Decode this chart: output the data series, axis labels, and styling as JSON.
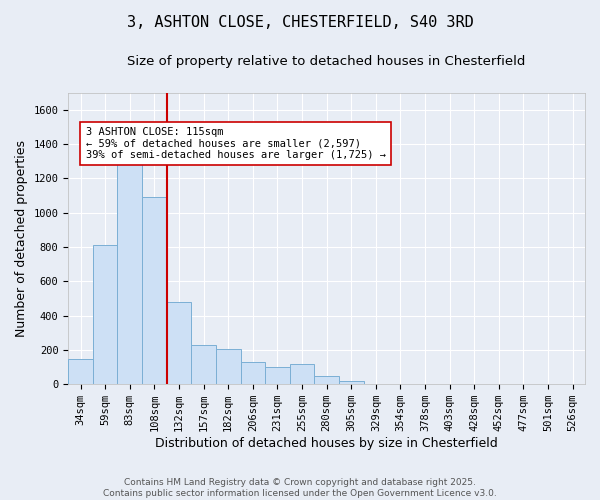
{
  "title1": "3, ASHTON CLOSE, CHESTERFIELD, S40 3RD",
  "title2": "Size of property relative to detached houses in Chesterfield",
  "xlabel": "Distribution of detached houses by size in Chesterfield",
  "ylabel": "Number of detached properties",
  "categories": [
    "34sqm",
    "59sqm",
    "83sqm",
    "108sqm",
    "132sqm",
    "157sqm",
    "182sqm",
    "206sqm",
    "231sqm",
    "255sqm",
    "280sqm",
    "305sqm",
    "329sqm",
    "354sqm",
    "378sqm",
    "403sqm",
    "428sqm",
    "452sqm",
    "477sqm",
    "501sqm",
    "526sqm"
  ],
  "values": [
    150,
    810,
    1300,
    1090,
    480,
    230,
    205,
    130,
    100,
    120,
    50,
    20,
    0,
    0,
    0,
    0,
    0,
    0,
    0,
    0,
    0
  ],
  "bar_color": "#cde0f5",
  "bar_edge_color": "#7bafd4",
  "vline_x": 3.5,
  "vline_color": "#cc0000",
  "annotation_text": "3 ASHTON CLOSE: 115sqm\n← 59% of detached houses are smaller (2,597)\n39% of semi-detached houses are larger (1,725) →",
  "annotation_box_color": "#ffffff",
  "annotation_box_edge": "#cc0000",
  "ylim": [
    0,
    1700
  ],
  "yticks": [
    0,
    200,
    400,
    600,
    800,
    1000,
    1200,
    1400,
    1600
  ],
  "footer1": "Contains HM Land Registry data © Crown copyright and database right 2025.",
  "footer2": "Contains public sector information licensed under the Open Government Licence v3.0.",
  "bg_color": "#e8edf5",
  "plot_bg_color": "#e8edf5",
  "grid_color": "#ffffff",
  "title_fontsize": 11,
  "subtitle_fontsize": 9.5,
  "axis_fontsize": 9,
  "tick_fontsize": 7.5,
  "ann_fontsize": 7.5,
  "footer_fontsize": 6.5
}
